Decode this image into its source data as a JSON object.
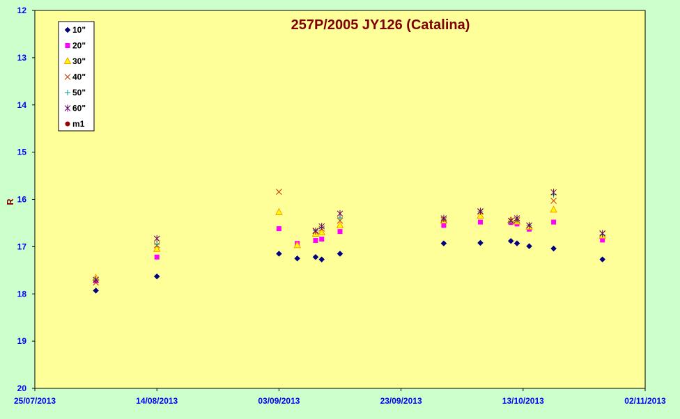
{
  "chart_data": {
    "type": "scatter",
    "title": "257P/2005 JY126 (Catalina)",
    "ylabel": "R",
    "xlabel": "",
    "ylim": [
      12,
      20
    ],
    "y_inverted": true,
    "xlim": [
      "25/07/2013",
      "02/11/2013"
    ],
    "x_ticks": [
      "25/07/2013",
      "14/08/2013",
      "03/09/2013",
      "23/09/2013",
      "13/10/2013",
      "02/11/2013"
    ],
    "y_ticks": [
      12,
      13,
      14,
      15,
      16,
      17,
      18,
      19,
      20
    ],
    "grid": false,
    "legend_position": "top-left",
    "colors": {
      "plot_bg": "#ffff99",
      "page_bg": "#ccffcc",
      "tick_text": "#0000ff",
      "title_text": "#800000"
    },
    "series": [
      {
        "name": "10\"",
        "marker": "diamond",
        "color": "#000080",
        "x": [
          "04/08/2013",
          "14/08/2013",
          "03/09/2013",
          "06/09/2013",
          "09/09/2013",
          "10/09/2013",
          "13/09/2013",
          "30/09/2013",
          "06/10/2013",
          "11/10/2013",
          "12/10/2013",
          "14/10/2013",
          "18/10/2013",
          "26/10/2013"
        ],
        "y": [
          17.93,
          17.63,
          17.15,
          17.25,
          17.22,
          17.27,
          17.15,
          16.93,
          16.92,
          16.88,
          16.93,
          16.99,
          17.04,
          17.27
        ]
      },
      {
        "name": "20\"",
        "marker": "square",
        "color": "#ff00ff",
        "x": [
          "04/08/2013",
          "14/08/2013",
          "03/09/2013",
          "06/09/2013",
          "09/09/2013",
          "10/09/2013",
          "13/09/2013",
          "30/09/2013",
          "06/10/2013",
          "11/10/2013",
          "12/10/2013",
          "14/10/2013",
          "18/10/2013",
          "26/10/2013"
        ],
        "y": [
          17.72,
          17.22,
          16.62,
          16.93,
          16.87,
          16.84,
          16.68,
          16.55,
          16.48,
          16.49,
          16.52,
          16.63,
          16.48,
          16.86
        ]
      },
      {
        "name": "30\"",
        "marker": "triangle",
        "color": "#ff9900",
        "x": [
          "04/08/2013",
          "14/08/2013",
          "03/09/2013",
          "06/09/2013",
          "09/09/2013",
          "10/09/2013",
          "13/09/2013",
          "30/09/2013",
          "06/10/2013",
          "11/10/2013",
          "12/10/2013",
          "14/10/2013",
          "18/10/2013",
          "26/10/2013"
        ],
        "y": [
          17.66,
          17.05,
          16.27,
          16.97,
          16.73,
          16.7,
          16.55,
          16.45,
          16.35,
          16.44,
          16.47,
          16.58,
          16.22,
          16.77
        ]
      },
      {
        "name": "40\"",
        "marker": "x",
        "color": "#cc3300",
        "x": [
          "04/08/2013",
          "14/08/2013",
          "03/09/2013",
          "09/09/2013",
          "10/09/2013",
          "13/09/2013",
          "30/09/2013",
          "06/10/2013",
          "11/10/2013",
          "12/10/2013",
          "14/10/2013",
          "18/10/2013",
          "26/10/2013"
        ],
        "y": [
          17.76,
          16.97,
          15.84,
          16.66,
          16.62,
          16.45,
          16.43,
          16.26,
          16.45,
          16.44,
          16.55,
          16.03,
          16.72
        ]
      },
      {
        "name": "50\"",
        "marker": "plus",
        "color": "#009999",
        "x": [
          "04/08/2013",
          "14/08/2013",
          "09/09/2013",
          "10/09/2013",
          "13/09/2013",
          "30/09/2013",
          "06/10/2013",
          "11/10/2013",
          "12/10/2013",
          "14/10/2013",
          "18/10/2013",
          "26/10/2013"
        ],
        "y": [
          17.7,
          16.95,
          16.66,
          16.59,
          16.39,
          16.42,
          16.26,
          16.47,
          16.44,
          16.55,
          15.9,
          16.75
        ]
      },
      {
        "name": "60\"",
        "marker": "asterisk",
        "color": "#660066",
        "x": [
          "04/08/2013",
          "14/08/2013",
          "09/09/2013",
          "10/09/2013",
          "13/09/2013",
          "30/09/2013",
          "06/10/2013",
          "11/10/2013",
          "12/10/2013",
          "14/10/2013",
          "18/10/2013",
          "26/10/2013"
        ],
        "y": [
          17.7,
          16.83,
          16.67,
          16.57,
          16.3,
          16.4,
          16.25,
          16.45,
          16.4,
          16.55,
          15.85,
          16.72
        ]
      },
      {
        "name": "m1",
        "marker": "circle",
        "color": "#990000",
        "x": [],
        "y": []
      }
    ]
  }
}
